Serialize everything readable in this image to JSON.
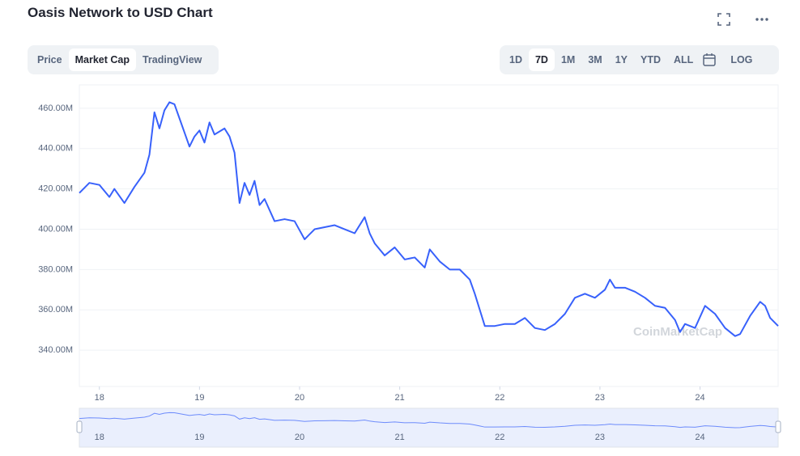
{
  "chart_data": {
    "type": "line",
    "title": "Oasis Network to USD Chart",
    "x": [
      17.8,
      17.9,
      18.0,
      18.1,
      18.15,
      18.25,
      18.35,
      18.45,
      18.5,
      18.55,
      18.6,
      18.65,
      18.7,
      18.75,
      18.8,
      18.85,
      18.9,
      18.95,
      19.0,
      19.05,
      19.1,
      19.15,
      19.25,
      19.3,
      19.35,
      19.4,
      19.45,
      19.5,
      19.55,
      19.6,
      19.65,
      19.75,
      19.85,
      19.95,
      20.05,
      20.15,
      20.25,
      20.35,
      20.45,
      20.55,
      20.65,
      20.7,
      20.75,
      20.8,
      20.85,
      20.95,
      21.05,
      21.15,
      21.25,
      21.3,
      21.4,
      21.5,
      21.6,
      21.7,
      21.75,
      21.8,
      21.85,
      21.95,
      22.05,
      22.15,
      22.25,
      22.35,
      22.45,
      22.55,
      22.65,
      22.75,
      22.85,
      22.95,
      23.05,
      23.1,
      23.15,
      23.25,
      23.35,
      23.45,
      23.55,
      23.65,
      23.75,
      23.8,
      23.85,
      23.95,
      24.05,
      24.15,
      24.25,
      24.35,
      24.4,
      24.5,
      24.6,
      24.65,
      24.7,
      24.78
    ],
    "series": [
      {
        "color": "#3861fb",
        "values": [
          418,
          423,
          422,
          416,
          420,
          413,
          421,
          428,
          437,
          458,
          450,
          459,
          463,
          462,
          455,
          448,
          441,
          446,
          449,
          443,
          453,
          447,
          450,
          446,
          438,
          413,
          423,
          417,
          424,
          412,
          415,
          404,
          405,
          404,
          395,
          400,
          401,
          402,
          400,
          398,
          406,
          398,
          393,
          390,
          387,
          391,
          385,
          386,
          381,
          390,
          384,
          380,
          380,
          375,
          368,
          360,
          352,
          352,
          353,
          353,
          356,
          351,
          350,
          353,
          358,
          366,
          368,
          366,
          370,
          375,
          371,
          371,
          369,
          366,
          362,
          361,
          355,
          349,
          353,
          351,
          362,
          358,
          351,
          347,
          348,
          357,
          364,
          362,
          356,
          352
        ]
      }
    ],
    "xlim": [
      17.8,
      24.78
    ],
    "xticks": [
      18,
      19,
      20,
      21,
      22,
      23,
      24
    ],
    "ylim": [
      322,
      471.6
    ],
    "yticks": [
      {
        "value": 340,
        "label": "340.00M"
      },
      {
        "value": 360,
        "label": "360.00M"
      },
      {
        "value": 380,
        "label": "380.00M"
      },
      {
        "value": 400,
        "label": "400.00M"
      },
      {
        "value": 420,
        "label": "420.00M"
      },
      {
        "value": 440,
        "label": "440.00M"
      },
      {
        "value": 460,
        "label": "460.00M"
      }
    ],
    "grid": true,
    "watermark": "CoinMarketCap"
  },
  "ui": {
    "tabs": [
      "Price",
      "Market Cap",
      "TradingView"
    ],
    "ranges": [
      "1D",
      "7D",
      "1M",
      "3M",
      "1Y",
      "YTD",
      "ALL"
    ],
    "log": "LOG"
  }
}
